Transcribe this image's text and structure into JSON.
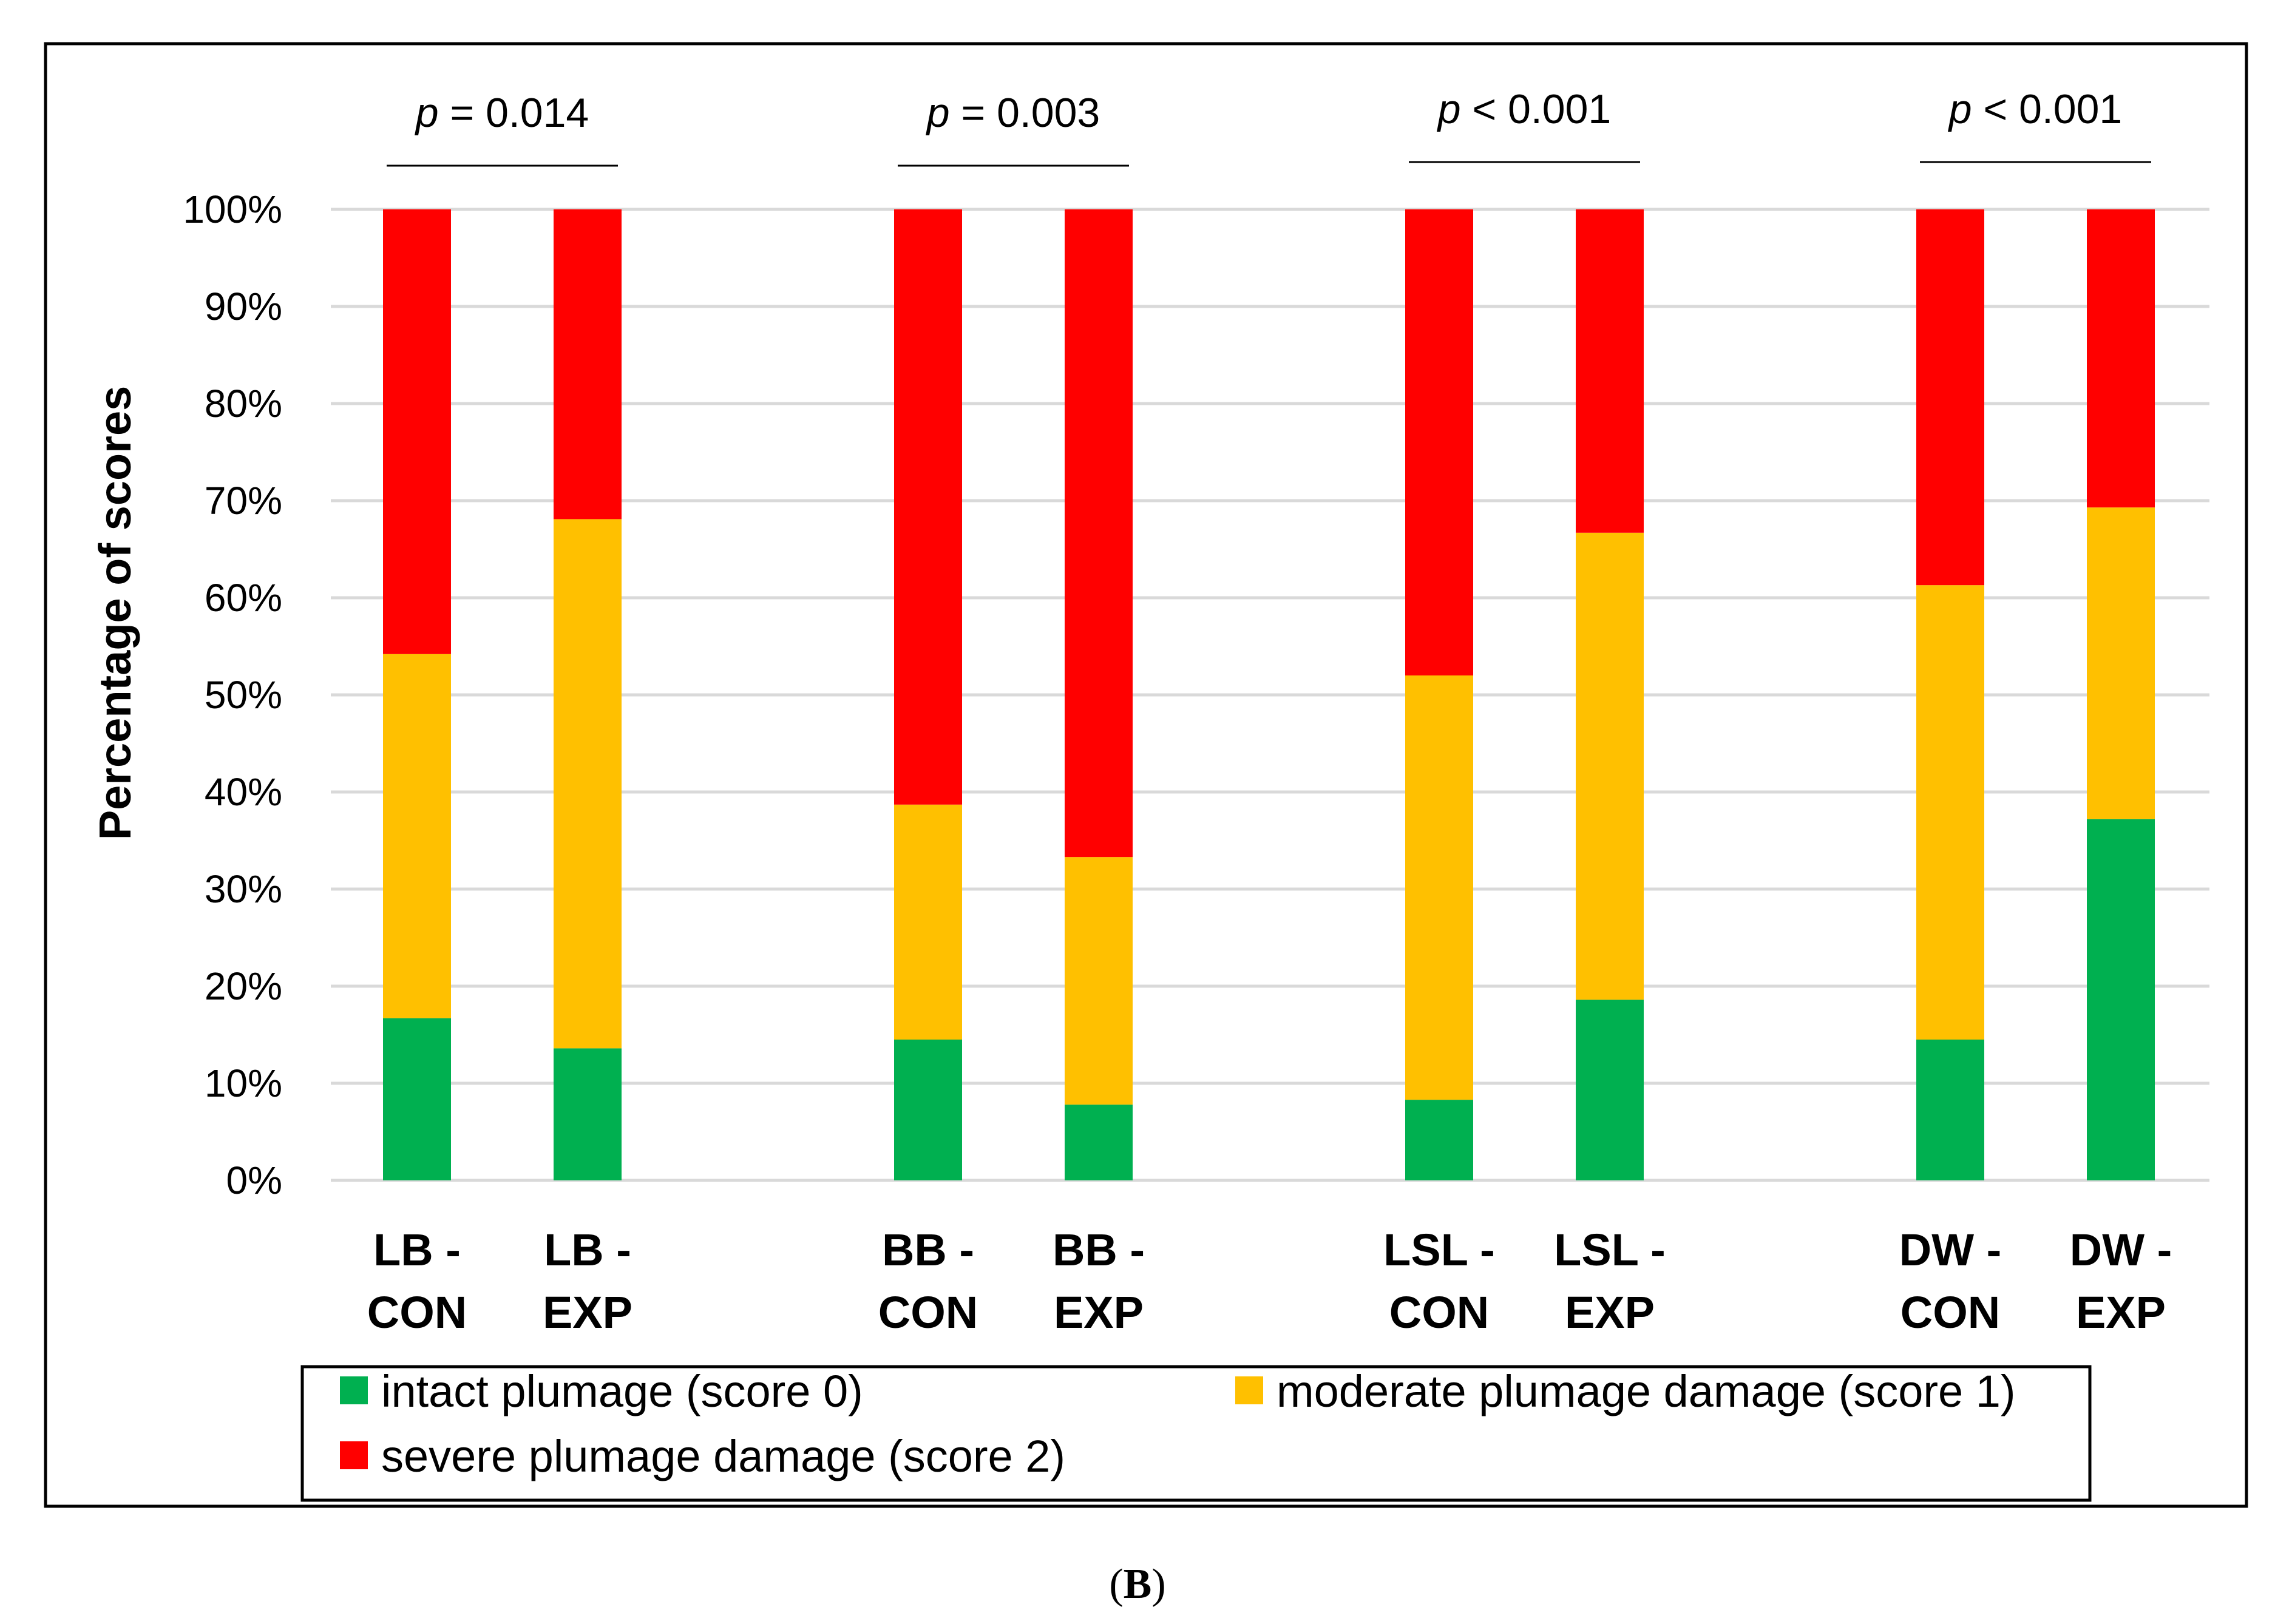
{
  "chart_data": {
    "type": "bar",
    "stacked": true,
    "ylabel": "Percentage of scores",
    "ylim": [
      0,
      100
    ],
    "yticks": [
      "0%",
      "10%",
      "20%",
      "30%",
      "40%",
      "50%",
      "60%",
      "70%",
      "80%",
      "90%",
      "100%"
    ],
    "grid": true,
    "categories": [
      [
        "LB -",
        "CON"
      ],
      [
        "LB -",
        "EXP"
      ],
      [
        "BB -",
        "CON"
      ],
      [
        "BB -",
        "EXP"
      ],
      [
        "LSL -",
        "CON"
      ],
      [
        "LSL -",
        "EXP"
      ],
      [
        "DW -",
        "CON"
      ],
      [
        "DW -",
        "EXP"
      ]
    ],
    "series": [
      {
        "name": "intact plumage (score 0)",
        "color": "#00b050",
        "values": [
          16.7,
          13.6,
          14.5,
          7.8,
          8.3,
          18.6,
          14.5,
          37.2
        ]
      },
      {
        "name": "moderate plumage damage (score 1)",
        "color": "#ffc000",
        "values": [
          37.5,
          54.5,
          24.2,
          25.5,
          43.7,
          48.1,
          46.8,
          32.1
        ]
      },
      {
        "name": "severe plumage damage (score 2)",
        "color": "#ff0000",
        "values": [
          45.8,
          31.9,
          61.3,
          66.7,
          48.0,
          33.3,
          38.7,
          30.7
        ]
      }
    ],
    "annotations": [
      {
        "text": "p",
        "rest": " = 0.014",
        "pair": [
          0,
          1
        ]
      },
      {
        "text": "p",
        "rest": " = 0.003",
        "pair": [
          2,
          3
        ]
      },
      {
        "text": "p",
        "rest": " < 0.001",
        "pair": [
          4,
          5
        ]
      },
      {
        "text": "p",
        "rest": " < 0.001",
        "pair": [
          6,
          7
        ]
      }
    ],
    "legend": "bottom",
    "caption": {
      "open": "(",
      "letter": "B",
      "close": ")"
    }
  }
}
